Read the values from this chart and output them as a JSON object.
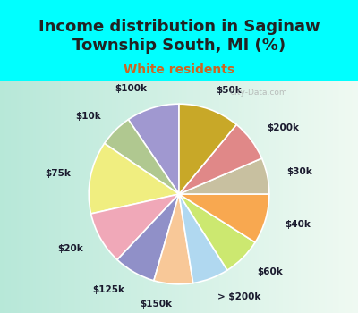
{
  "title": "Income distribution in Saginaw\nTownship South, MI (%)",
  "subtitle": "White residents",
  "background_top": "#00ffff",
  "background_chart_color": "#c8ede0",
  "labels": [
    "$100k",
    "$10k",
    "$75k",
    "$20k",
    "$125k",
    "$150k",
    "> $200k",
    "$60k",
    "$40k",
    "$30k",
    "$200k",
    "$50k"
  ],
  "values": [
    9.5,
    6.0,
    13.0,
    9.5,
    7.5,
    7.0,
    6.5,
    7.0,
    9.0,
    6.5,
    7.5,
    11.0
  ],
  "colors": [
    "#a098d0",
    "#b0c890",
    "#f0ee80",
    "#f0a8b8",
    "#9090c8",
    "#f8c898",
    "#b0d8f0",
    "#cce870",
    "#f8a850",
    "#c8c0a0",
    "#e08888",
    "#c8a828"
  ],
  "watermark": "City-Data.com",
  "label_fontsize": 7.5,
  "title_fontsize": 13,
  "subtitle_fontsize": 10,
  "startangle": 90
}
